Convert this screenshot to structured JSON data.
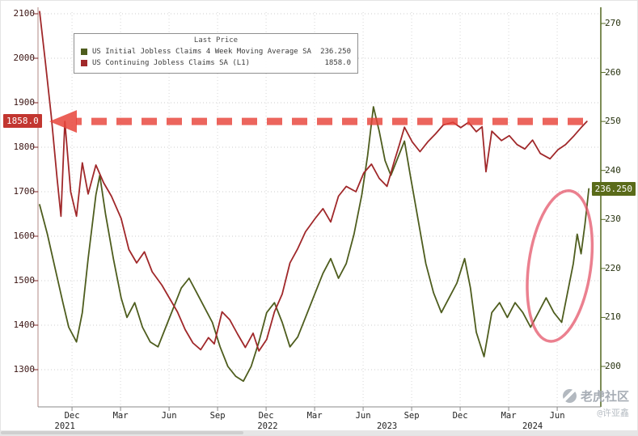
{
  "chart_data": {
    "type": "line",
    "title": "",
    "grid": "dotted",
    "background": "#ffffff",
    "legend": {
      "title": "Last Price",
      "position": "top-left"
    },
    "left_axis": {
      "min": 1300,
      "max": 2100,
      "ticks": [
        2100,
        2000,
        1900,
        1800,
        1700,
        1600,
        1500,
        1400,
        1300
      ],
      "highlight_value_label": "1858.0",
      "highlight_color": "#c23630"
    },
    "right_axis": {
      "min": 195,
      "max": 272,
      "ticks": [
        270,
        260,
        250,
        240,
        230,
        220,
        210,
        200
      ],
      "highlight_value_label": "236.250",
      "highlight_color": "#5a6b1a"
    },
    "x_axis": {
      "month_ticks": [
        [
          "Dec",
          2021.917
        ],
        [
          "Mar",
          2022.167
        ],
        [
          "Jun",
          2022.417
        ],
        [
          "Sep",
          2022.667
        ],
        [
          "Dec",
          2022.917
        ],
        [
          "Mar",
          2023.167
        ],
        [
          "Jun",
          2023.417
        ],
        [
          "Sep",
          2023.667
        ],
        [
          "Dec",
          2023.917
        ],
        [
          "Mar",
          2024.167
        ],
        [
          "Jun",
          2024.417
        ]
      ],
      "year_labels": [
        [
          "2021",
          2021.88
        ],
        [
          "2022",
          2022.925
        ],
        [
          "2023",
          2023.54
        ],
        [
          "2024",
          2024.29
        ]
      ]
    },
    "series": [
      {
        "name": "US Initial Jobless Claims 4 Week Moving Average SA",
        "axis": "R1",
        "legend_label": "US Initial Jobless Claims 4 Week Moving Average SA  (R1)",
        "last_value": 236.25,
        "last_value_label": "236.250",
        "color": "#4e5d1e",
        "points": [
          [
            2021.75,
            233
          ],
          [
            2021.79,
            227
          ],
          [
            2021.83,
            220
          ],
          [
            2021.87,
            213
          ],
          [
            2021.9,
            208
          ],
          [
            2021.94,
            205
          ],
          [
            2021.97,
            211
          ],
          [
            2022.0,
            222
          ],
          [
            2022.04,
            235
          ],
          [
            2022.06,
            239
          ],
          [
            2022.09,
            231
          ],
          [
            2022.13,
            222
          ],
          [
            2022.17,
            214
          ],
          [
            2022.2,
            210
          ],
          [
            2022.24,
            213
          ],
          [
            2022.28,
            208
          ],
          [
            2022.32,
            205
          ],
          [
            2022.36,
            204
          ],
          [
            2022.4,
            208
          ],
          [
            2022.44,
            212
          ],
          [
            2022.48,
            216
          ],
          [
            2022.52,
            218
          ],
          [
            2022.56,
            215
          ],
          [
            2022.6,
            212
          ],
          [
            2022.64,
            209
          ],
          [
            2022.68,
            204
          ],
          [
            2022.72,
            200
          ],
          [
            2022.76,
            198
          ],
          [
            2022.8,
            197
          ],
          [
            2022.84,
            200
          ],
          [
            2022.88,
            205
          ],
          [
            2022.92,
            211
          ],
          [
            2022.96,
            213
          ],
          [
            2023.0,
            209
          ],
          [
            2023.04,
            204
          ],
          [
            2023.08,
            206
          ],
          [
            2023.12,
            210
          ],
          [
            2023.17,
            215
          ],
          [
            2023.21,
            219
          ],
          [
            2023.25,
            222
          ],
          [
            2023.29,
            218
          ],
          [
            2023.33,
            221
          ],
          [
            2023.37,
            227
          ],
          [
            2023.41,
            235
          ],
          [
            2023.44,
            243
          ],
          [
            2023.47,
            253
          ],
          [
            2023.5,
            248
          ],
          [
            2023.53,
            242
          ],
          [
            2023.56,
            239
          ],
          [
            2023.6,
            243
          ],
          [
            2023.63,
            246
          ],
          [
            2023.66,
            239
          ],
          [
            2023.7,
            230
          ],
          [
            2023.74,
            221
          ],
          [
            2023.78,
            215
          ],
          [
            2023.82,
            211
          ],
          [
            2023.86,
            214
          ],
          [
            2023.9,
            217
          ],
          [
            2023.94,
            222
          ],
          [
            2023.97,
            216
          ],
          [
            2024.0,
            207
          ],
          [
            2024.04,
            202
          ],
          [
            2024.08,
            211
          ],
          [
            2024.12,
            213
          ],
          [
            2024.16,
            210
          ],
          [
            2024.2,
            213
          ],
          [
            2024.24,
            211
          ],
          [
            2024.28,
            208
          ],
          [
            2024.32,
            211
          ],
          [
            2024.36,
            214
          ],
          [
            2024.4,
            211
          ],
          [
            2024.44,
            209
          ],
          [
            2024.47,
            215
          ],
          [
            2024.5,
            221
          ],
          [
            2024.52,
            227
          ],
          [
            2024.54,
            223
          ],
          [
            2024.56,
            229
          ],
          [
            2024.58,
            236.25
          ]
        ]
      },
      {
        "name": "US Continuing Jobless Claims SA",
        "axis": "L1",
        "legend_label": "US Continuing Jobless Claims SA  (L1)",
        "last_value": 1858.0,
        "last_value_label": "1858.0",
        "color": "#a0282a",
        "points": [
          [
            2021.75,
            2105
          ],
          [
            2021.78,
            1990
          ],
          [
            2021.81,
            1870
          ],
          [
            2021.84,
            1730
          ],
          [
            2021.86,
            1645
          ],
          [
            2021.88,
            1858
          ],
          [
            2021.91,
            1700
          ],
          [
            2021.94,
            1645
          ],
          [
            2021.97,
            1765
          ],
          [
            2022.0,
            1695
          ],
          [
            2022.04,
            1760
          ],
          [
            2022.08,
            1720
          ],
          [
            2022.12,
            1690
          ],
          [
            2022.17,
            1640
          ],
          [
            2022.21,
            1570
          ],
          [
            2022.25,
            1540
          ],
          [
            2022.29,
            1565
          ],
          [
            2022.33,
            1520
          ],
          [
            2022.38,
            1490
          ],
          [
            2022.42,
            1460
          ],
          [
            2022.46,
            1430
          ],
          [
            2022.5,
            1390
          ],
          [
            2022.54,
            1360
          ],
          [
            2022.58,
            1345
          ],
          [
            2022.62,
            1372
          ],
          [
            2022.65,
            1358
          ],
          [
            2022.69,
            1430
          ],
          [
            2022.73,
            1412
          ],
          [
            2022.77,
            1380
          ],
          [
            2022.81,
            1350
          ],
          [
            2022.85,
            1382
          ],
          [
            2022.88,
            1342
          ],
          [
            2022.92,
            1368
          ],
          [
            2022.96,
            1430
          ],
          [
            2023.0,
            1470
          ],
          [
            2023.04,
            1540
          ],
          [
            2023.08,
            1572
          ],
          [
            2023.12,
            1610
          ],
          [
            2023.17,
            1640
          ],
          [
            2023.21,
            1662
          ],
          [
            2023.25,
            1632
          ],
          [
            2023.29,
            1690
          ],
          [
            2023.33,
            1712
          ],
          [
            2023.38,
            1700
          ],
          [
            2023.42,
            1742
          ],
          [
            2023.46,
            1762
          ],
          [
            2023.5,
            1730
          ],
          [
            2023.54,
            1712
          ],
          [
            2023.58,
            1772
          ],
          [
            2023.6,
            1800
          ],
          [
            2023.63,
            1845
          ],
          [
            2023.67,
            1812
          ],
          [
            2023.71,
            1790
          ],
          [
            2023.75,
            1812
          ],
          [
            2023.79,
            1830
          ],
          [
            2023.83,
            1850
          ],
          [
            2023.88,
            1856
          ],
          [
            2023.92,
            1844
          ],
          [
            2023.96,
            1856
          ],
          [
            2024.0,
            1835
          ],
          [
            2024.03,
            1846
          ],
          [
            2024.05,
            1745
          ],
          [
            2024.08,
            1836
          ],
          [
            2024.13,
            1815
          ],
          [
            2024.17,
            1826
          ],
          [
            2024.21,
            1806
          ],
          [
            2024.25,
            1796
          ],
          [
            2024.29,
            1816
          ],
          [
            2024.33,
            1786
          ],
          [
            2024.38,
            1774
          ],
          [
            2024.42,
            1794
          ],
          [
            2024.46,
            1806
          ],
          [
            2024.5,
            1824
          ],
          [
            2024.54,
            1844
          ],
          [
            2024.57,
            1858
          ]
        ]
      }
    ],
    "annotations": {
      "dashed_arrow": {
        "level": 1858,
        "axis": "L1",
        "from_t": 2024.55,
        "direction": "left",
        "color": "#e8443a"
      },
      "highlight_ellipse": {
        "center_t": 2024.43,
        "center_value": 220.5,
        "axis": "R1",
        "rx_t": 0.16,
        "ry_value": 15.5,
        "rotate_deg": 8,
        "color": "#e4556a"
      }
    }
  },
  "watermark": {
    "community": "老虎社区",
    "handle": "@许亚鑫"
  }
}
